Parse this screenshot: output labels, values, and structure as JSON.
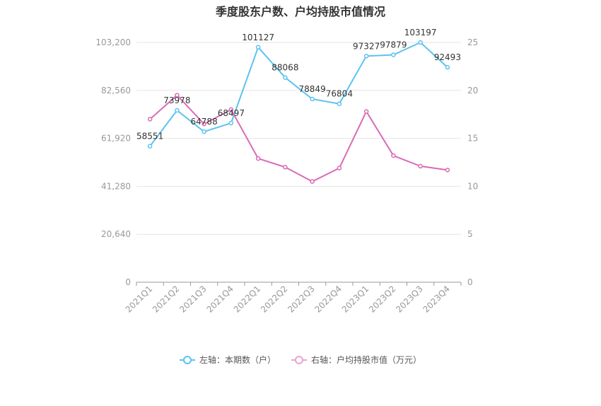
{
  "chart_data": {
    "type": "line",
    "title": "季度股东户数、户均持股市值情况",
    "categories": [
      "2021Q1",
      "2021Q2",
      "2021Q3",
      "2021Q4",
      "2022Q1",
      "2022Q2",
      "2022Q3",
      "2022Q4",
      "2023Q1",
      "2023Q2",
      "2023Q3",
      "2023Q4"
    ],
    "left_axis": {
      "ticks": [
        0,
        20640,
        41280,
        61920,
        82560,
        103200
      ],
      "tick_labels": [
        "0",
        "20,640",
        "41,280",
        "61,920",
        "82,560",
        "103,200"
      ],
      "ylim": [
        0,
        103200
      ]
    },
    "right_axis": {
      "ticks": [
        0,
        5,
        10,
        15,
        20,
        25
      ],
      "tick_labels": [
        "0",
        "5",
        "10",
        "15",
        "20",
        "25"
      ],
      "ylim": [
        0,
        25
      ]
    },
    "series": [
      {
        "name": "左轴：本期数（户）",
        "axis": "left",
        "color": "#5bc3ef",
        "values": [
          58551,
          73978,
          64788,
          68497,
          101127,
          88068,
          78849,
          76804,
          97327,
          97879,
          103197,
          92493
        ],
        "labels": [
          "58551",
          "73978",
          "64788",
          "68497",
          "101127",
          "88068",
          "78849",
          "76804",
          "97327",
          "97879",
          "103197",
          "92493"
        ]
      },
      {
        "name": "右轴：户均持股市值（万元）",
        "axis": "right",
        "color": "#d96bb5",
        "values": [
          17.0,
          19.5,
          16.5,
          18.0,
          12.9,
          12.0,
          10.5,
          11.9,
          17.8,
          13.2,
          12.1,
          11.7
        ]
      }
    ],
    "grid": true,
    "legend_position": "bottom-center"
  }
}
